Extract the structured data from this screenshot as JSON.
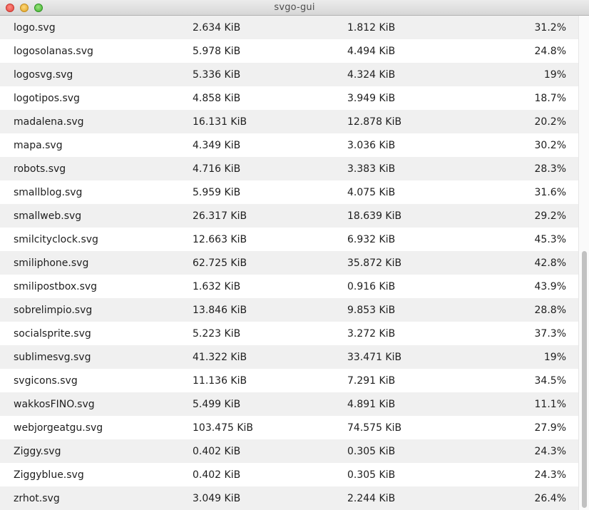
{
  "window": {
    "title": "svgo-gui"
  },
  "rows": [
    {
      "name": "logo.svg",
      "original": "2.634 KiB",
      "optimized": "1.812 KiB",
      "saving": "31.2%"
    },
    {
      "name": "logosolanas.svg",
      "original": "5.978 KiB",
      "optimized": "4.494 KiB",
      "saving": "24.8%"
    },
    {
      "name": "logosvg.svg",
      "original": "5.336 KiB",
      "optimized": "4.324 KiB",
      "saving": "19%"
    },
    {
      "name": "logotipos.svg",
      "original": "4.858 KiB",
      "optimized": "3.949 KiB",
      "saving": "18.7%"
    },
    {
      "name": "madalena.svg",
      "original": "16.131 KiB",
      "optimized": "12.878 KiB",
      "saving": "20.2%"
    },
    {
      "name": "mapa.svg",
      "original": "4.349 KiB",
      "optimized": "3.036 KiB",
      "saving": "30.2%"
    },
    {
      "name": "robots.svg",
      "original": "4.716 KiB",
      "optimized": "3.383 KiB",
      "saving": "28.3%"
    },
    {
      "name": "smallblog.svg",
      "original": "5.959 KiB",
      "optimized": "4.075 KiB",
      "saving": "31.6%"
    },
    {
      "name": "smallweb.svg",
      "original": "26.317 KiB",
      "optimized": "18.639 KiB",
      "saving": "29.2%"
    },
    {
      "name": "smilcityclock.svg",
      "original": "12.663 KiB",
      "optimized": "6.932 KiB",
      "saving": "45.3%"
    },
    {
      "name": "smiliphone.svg",
      "original": "62.725 KiB",
      "optimized": "35.872 KiB",
      "saving": "42.8%"
    },
    {
      "name": "smilipostbox.svg",
      "original": "1.632 KiB",
      "optimized": "0.916 KiB",
      "saving": "43.9%"
    },
    {
      "name": "sobrelimpio.svg",
      "original": "13.846 KiB",
      "optimized": "9.853 KiB",
      "saving": "28.8%"
    },
    {
      "name": "socialsprite.svg",
      "original": "5.223 KiB",
      "optimized": "3.272 KiB",
      "saving": "37.3%"
    },
    {
      "name": "sublimesvg.svg",
      "original": "41.322 KiB",
      "optimized": "33.471 KiB",
      "saving": "19%"
    },
    {
      "name": "svgicons.svg",
      "original": "11.136 KiB",
      "optimized": "7.291 KiB",
      "saving": "34.5%"
    },
    {
      "name": "wakkosFINO.svg",
      "original": "5.499 KiB",
      "optimized": "4.891 KiB",
      "saving": "11.1%"
    },
    {
      "name": "webjorgeatgu.svg",
      "original": "103.475 KiB",
      "optimized": "74.575 KiB",
      "saving": "27.9%"
    },
    {
      "name": "Ziggy.svg",
      "original": "0.402 KiB",
      "optimized": "0.305 KiB",
      "saving": "24.3%"
    },
    {
      "name": "Ziggyblue.svg",
      "original": "0.402 KiB",
      "optimized": "0.305 KiB",
      "saving": "24.3%"
    },
    {
      "name": "zrhot.svg",
      "original": "3.049 KiB",
      "optimized": "2.244 KiB",
      "saving": "26.4%"
    }
  ],
  "colors": {
    "row_odd": "#f0f0f0",
    "row_even": "#ffffff",
    "text": "#1e1e1e",
    "close": "#e0443e",
    "minimize": "#dea123",
    "zoom": "#3fae2c"
  },
  "icons": [
    "close-button-icon",
    "minimize-button-icon",
    "zoom-button-icon"
  ]
}
